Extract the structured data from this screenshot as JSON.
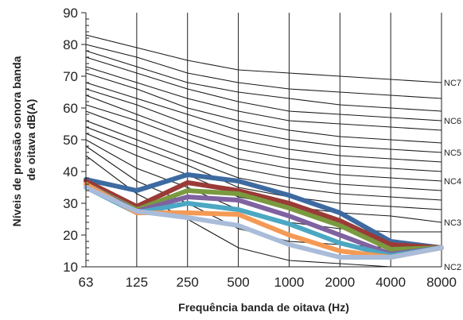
{
  "chart_data": {
    "type": "line",
    "xlabel": "Frequência banda de oitava (Hz)",
    "ylabel": "Níveis de pressão sonora banda de oitava dB(A)",
    "ylabel_lines": [
      "Níveis de pressão sonora banda",
      "de oitava dB(A)"
    ],
    "categories": [
      "63",
      "125",
      "250",
      "500",
      "1000",
      "2000",
      "4000",
      "8000"
    ],
    "ylim": [
      10,
      90
    ],
    "yticks": [
      10,
      20,
      30,
      40,
      50,
      60,
      70,
      80,
      90
    ],
    "grid": "vertical lines at each category",
    "nc_curve_labels": [
      "NC7",
      "NC6",
      "NC5",
      "NC4",
      "NC3",
      "NC2"
    ],
    "nc_curves": [
      {
        "values": [
          83,
          79,
          75,
          72,
          71,
          70,
          69,
          68
        ],
        "label": "NC7"
      },
      {
        "values": [
          80,
          76,
          71,
          68,
          66,
          65,
          64,
          63
        ]
      },
      {
        "values": [
          78,
          73,
          68,
          65,
          63,
          61,
          60,
          59
        ]
      },
      {
        "values": [
          76,
          71,
          66,
          62,
          59,
          58,
          57,
          56
        ],
        "label": "NC6"
      },
      {
        "values": [
          73,
          68,
          63,
          59,
          56,
          55,
          54,
          53
        ]
      },
      {
        "values": [
          71,
          66,
          60,
          56,
          53,
          51,
          50,
          49
        ]
      },
      {
        "values": [
          68,
          63,
          58,
          53,
          50,
          48,
          47,
          46
        ],
        "label": "NC5"
      },
      {
        "values": [
          66,
          61,
          55,
          50,
          47,
          45,
          44,
          43
        ]
      },
      {
        "values": [
          64,
          58,
          52,
          47,
          44,
          42,
          41,
          40
        ]
      },
      {
        "values": [
          61,
          56,
          50,
          44,
          41,
          39,
          38,
          37
        ],
        "label": "NC4"
      },
      {
        "values": [
          59,
          53,
          47,
          41,
          38,
          36,
          35,
          34
        ]
      },
      {
        "values": [
          56,
          50,
          44,
          38,
          35,
          33,
          32,
          31
        ]
      },
      {
        "values": [
          54,
          48,
          42,
          35,
          32,
          30,
          29,
          28
        ]
      },
      {
        "values": [
          52,
          45,
          39,
          32,
          29,
          27,
          26,
          24
        ],
        "label": "NC3"
      },
      {
        "values": [
          50,
          41,
          35,
          28,
          24,
          22,
          21,
          21
        ]
      },
      {
        "values": [
          48,
          37,
          30,
          22,
          18,
          17,
          16,
          16
        ]
      },
      {
        "values": [
          45,
          33,
          25,
          16,
          12,
          11,
          10,
          10
        ],
        "label": "NC2"
      }
    ],
    "series": [
      {
        "values": [
          37.5,
          34,
          39,
          37,
          32.5,
          27,
          18,
          16
        ],
        "color": "#3d6aa0"
      },
      {
        "values": [
          37,
          29,
          36.5,
          34,
          30,
          24.5,
          17,
          16
        ],
        "color": "#9b3a36"
      },
      {
        "values": [
          36,
          28,
          34,
          33,
          28.5,
          23,
          15.5,
          16
        ],
        "color": "#7a9a3f"
      },
      {
        "values": [
          36,
          27.5,
          32,
          31,
          26,
          20,
          14,
          16
        ],
        "color": "#7f62a0"
      },
      {
        "values": [
          35,
          27,
          30,
          28,
          23.5,
          17.5,
          13.5,
          16
        ],
        "color": "#4ca7c3"
      },
      {
        "values": [
          36,
          27,
          27,
          26.5,
          20,
          15,
          13,
          16
        ],
        "color": "#f49a55"
      },
      {
        "values": [
          35,
          27.5,
          25.5,
          23,
          17,
          13,
          13,
          16
        ],
        "color": "#a9bcd9"
      }
    ]
  }
}
